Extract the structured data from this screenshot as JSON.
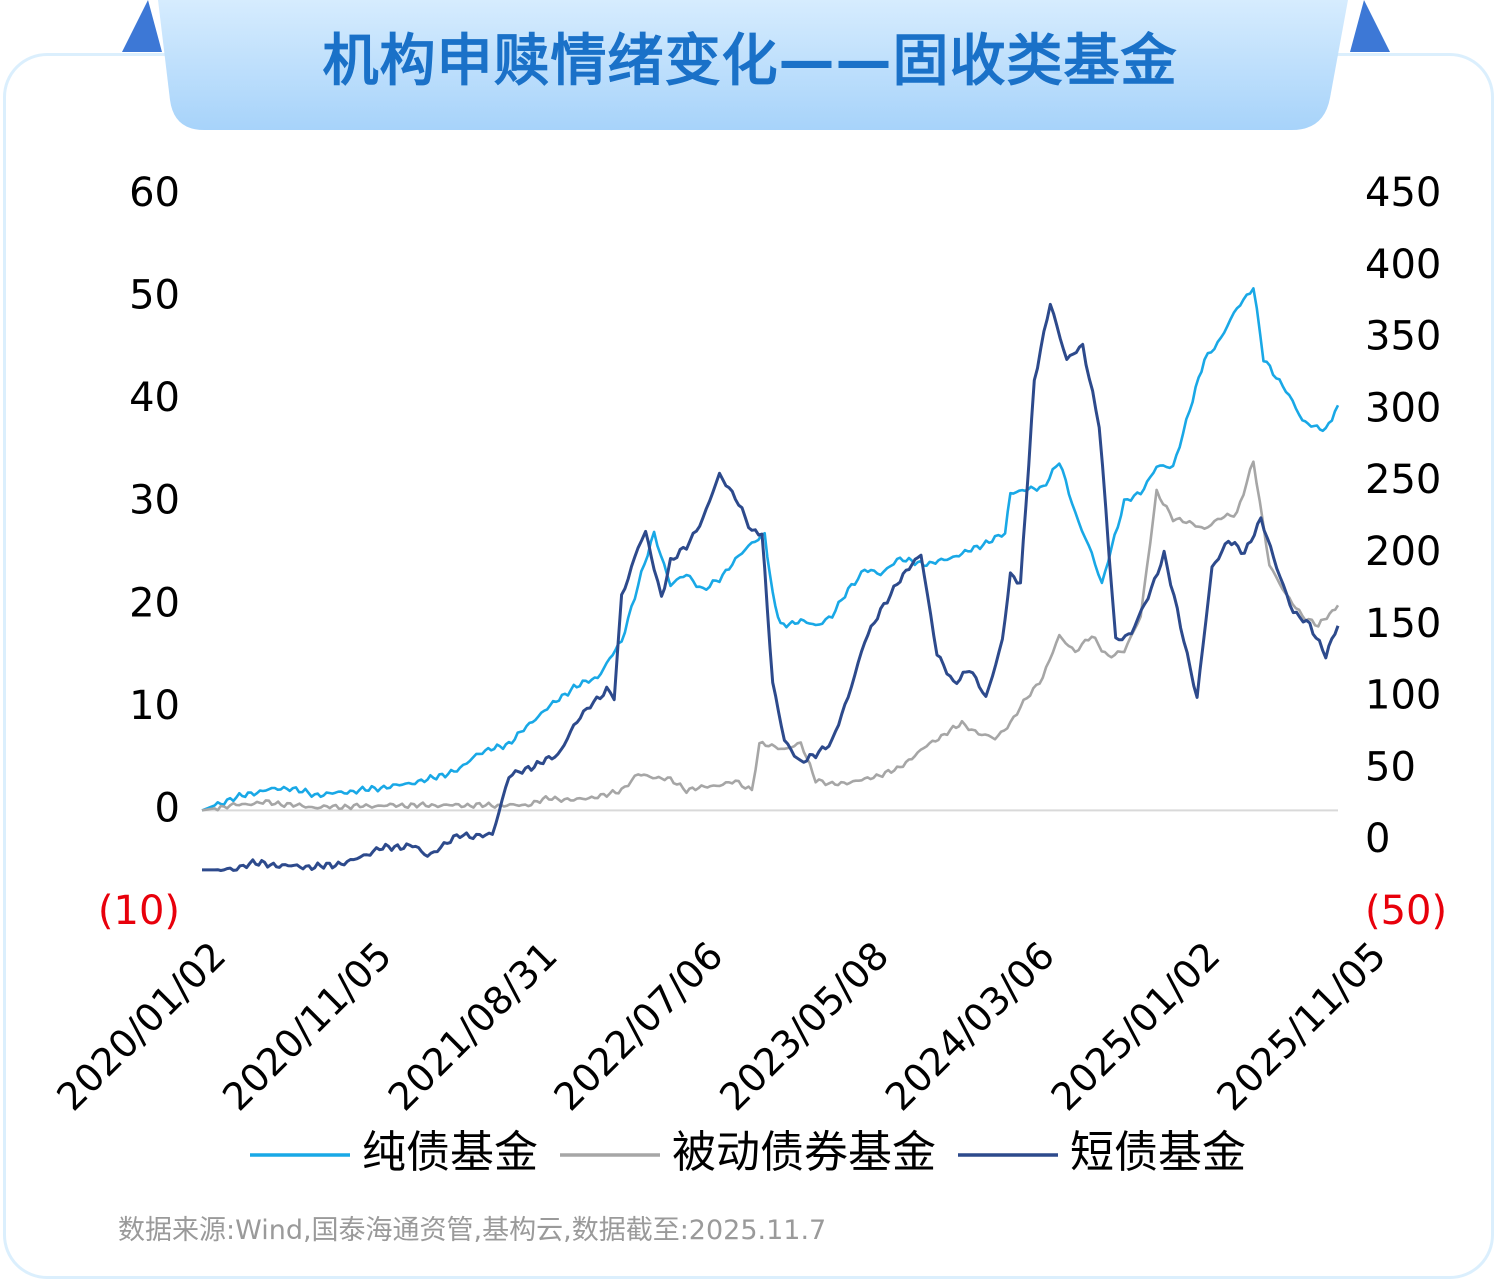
{
  "title": "机构申赎情绪变化——固收类基金",
  "source_note": "数据来源:Wind,国泰海通资管,基构云,数据截至:2025.11.7",
  "colors": {
    "title_text": "#1a71c8",
    "title_bg": "#a9d5fa",
    "pure_bond": "#19a8e6",
    "passive_bond": "#a6a6a6",
    "short_bond": "#2d4a8c",
    "negative_label": "#e8000b"
  },
  "chart_data": {
    "type": "line",
    "title": "机构申赎情绪变化——固收类基金",
    "x_tick_labels": [
      "2020/01/02",
      "2020/11/05",
      "2021/08/31",
      "2022/07/06",
      "2023/05/08",
      "2024/03/06",
      "2025/01/02",
      "2025/11/05"
    ],
    "x_range": [
      "2020/01/02",
      "2025/11/07"
    ],
    "left_axis": {
      "range": [
        -10,
        60
      ],
      "tick_values": [
        0,
        10,
        20,
        30,
        40,
        50,
        60
      ],
      "tick_labels": [
        "0",
        "10",
        "20",
        "30",
        "40",
        "50",
        "60"
      ],
      "min_label": "(10)"
    },
    "right_axis": {
      "range": [
        -50,
        450
      ],
      "tick_values": [
        0,
        50,
        100,
        150,
        200,
        250,
        300,
        350,
        400,
        450
      ],
      "tick_labels": [
        "0",
        "50",
        "100",
        "150",
        "200",
        "250",
        "300",
        "350",
        "400",
        "450"
      ],
      "min_label": "(50)"
    },
    "grid": false,
    "zero_line": true,
    "legend_position": "bottom",
    "series": [
      {
        "name": "纯债基金",
        "axis": "left",
        "color": "#19a8e6",
        "points": [
          [
            "2020/01/02",
            0
          ],
          [
            "2020/03/01",
            1.2
          ],
          [
            "2020/05/01",
            2.0
          ],
          [
            "2020/06/15",
            2.2
          ],
          [
            "2020/08/01",
            1.5
          ],
          [
            "2020/10/01",
            1.8
          ],
          [
            "2021/01/01",
            2.4
          ],
          [
            "2021/03/01",
            3.0
          ],
          [
            "2021/05/01",
            4.0
          ],
          [
            "2021/06/01",
            5.5
          ],
          [
            "2021/08/01",
            6.5
          ],
          [
            "2021/10/01",
            9.5
          ],
          [
            "2021/12/01",
            12.0
          ],
          [
            "2022/01/15",
            13.0
          ],
          [
            "2022/03/01",
            16.5
          ],
          [
            "2022/04/01",
            22.0
          ],
          [
            "2022/05/01",
            27.0
          ],
          [
            "2022/06/01",
            22.0
          ],
          [
            "2022/07/01",
            23.0
          ],
          [
            "2022/08/01",
            21.5
          ],
          [
            "2022/09/01",
            22.5
          ],
          [
            "2022/10/01",
            24.5
          ],
          [
            "2022/11/01",
            26.0
          ],
          [
            "2022/11/25",
            27.0
          ],
          [
            "2022/12/10",
            21.0
          ],
          [
            "2022/12/25",
            18.0
          ],
          [
            "2023/02/01",
            18.5
          ],
          [
            "2023/03/01",
            18.0
          ],
          [
            "2023/04/01",
            19.0
          ],
          [
            "2023/05/01",
            21.5
          ],
          [
            "2023/06/01",
            23.5
          ],
          [
            "2023/07/01",
            23.0
          ],
          [
            "2023/08/01",
            24.5
          ],
          [
            "2023/10/01",
            24.0
          ],
          [
            "2023/12/01",
            25.0
          ],
          [
            "2024/02/01",
            26.5
          ],
          [
            "2024/02/20",
            27.0
          ],
          [
            "2024/03/01",
            31.0
          ],
          [
            "2024/05/01",
            31.5
          ],
          [
            "2024/06/01",
            34.0
          ],
          [
            "2024/07/01",
            29.0
          ],
          [
            "2024/08/01",
            25.0
          ],
          [
            "2024/08/20",
            22.0
          ],
          [
            "2024/09/01",
            24.5
          ],
          [
            "2024/10/01",
            30.0
          ],
          [
            "2024/11/01",
            31.0
          ],
          [
            "2024/12/01",
            33.5
          ],
          [
            "2025/01/01",
            33.5
          ],
          [
            "2025/02/01",
            39.0
          ],
          [
            "2025/03/01",
            44.0
          ],
          [
            "2025/04/01",
            46.0
          ],
          [
            "2025/05/01",
            49.0
          ],
          [
            "2025/06/01",
            51.0
          ],
          [
            "2025/06/20",
            44.0
          ],
          [
            "2025/08/01",
            41.0
          ],
          [
            "2025/09/01",
            38.0
          ],
          [
            "2025/10/15",
            37.0
          ],
          [
            "2025/11/07",
            39.5
          ]
        ]
      },
      {
        "name": "被动债券基金",
        "axis": "left",
        "color": "#a6a6a6",
        "points": [
          [
            "2020/01/02",
            0
          ],
          [
            "2020/03/01",
            0.5
          ],
          [
            "2020/05/01",
            0.8
          ],
          [
            "2020/08/01",
            0.3
          ],
          [
            "2021/01/01",
            0.5
          ],
          [
            "2021/06/01",
            0.5
          ],
          [
            "2021/09/01",
            0.5
          ],
          [
            "2021/10/15",
            1.2
          ],
          [
            "2021/12/01",
            1.0
          ],
          [
            "2022/02/01",
            1.5
          ],
          [
            "2022/03/01",
            2.0
          ],
          [
            "2022/04/01",
            3.5
          ],
          [
            "2022/06/01",
            3.0
          ],
          [
            "2022/07/01",
            2.0
          ],
          [
            "2022/09/01",
            2.5
          ],
          [
            "2022/10/01",
            2.8
          ],
          [
            "2022/11/01",
            2.0
          ],
          [
            "2022/11/15",
            6.5
          ],
          [
            "2023/01/01",
            6.0
          ],
          [
            "2023/02/01",
            6.5
          ],
          [
            "2023/03/01",
            3.0
          ],
          [
            "2023/04/01",
            2.5
          ],
          [
            "2023/06/01",
            3.0
          ],
          [
            "2023/08/01",
            4.0
          ],
          [
            "2023/10/01",
            6.5
          ],
          [
            "2023/12/01",
            8.5
          ],
          [
            "2024/01/01",
            7.5
          ],
          [
            "2024/02/01",
            7.0
          ],
          [
            "2024/03/01",
            8.5
          ],
          [
            "2024/04/01",
            11.0
          ],
          [
            "2024/05/01",
            13.0
          ],
          [
            "2024/06/01",
            17.0
          ],
          [
            "2024/07/01",
            15.5
          ],
          [
            "2024/08/01",
            17.0
          ],
          [
            "2024/09/01",
            15.0
          ],
          [
            "2024/10/01",
            15.5
          ],
          [
            "2024/11/01",
            19.0
          ],
          [
            "2024/12/01",
            31.0
          ],
          [
            "2025/01/01",
            28.5
          ],
          [
            "2025/02/01",
            28.0
          ],
          [
            "2025/03/01",
            27.5
          ],
          [
            "2025/04/01",
            28.5
          ],
          [
            "2025/05/01",
            29.0
          ],
          [
            "2025/06/01",
            34.0
          ],
          [
            "2025/07/01",
            24.0
          ],
          [
            "2025/08/01",
            21.0
          ],
          [
            "2025/09/01",
            19.0
          ],
          [
            "2025/10/01",
            18.0
          ],
          [
            "2025/11/07",
            20.0
          ]
        ]
      },
      {
        "name": "短债基金",
        "axis": "right",
        "color": "#2d4a8c",
        "points": [
          [
            "2020/01/02",
            -20
          ],
          [
            "2020/03/01",
            -20
          ],
          [
            "2020/04/01",
            -15
          ],
          [
            "2020/06/01",
            -17
          ],
          [
            "2020/08/01",
            -18
          ],
          [
            "2020/10/01",
            -15
          ],
          [
            "2020/11/01",
            -10
          ],
          [
            "2020/12/01",
            -5
          ],
          [
            "2021/02/01",
            -3
          ],
          [
            "2021/03/01",
            -10
          ],
          [
            "2021/04/01",
            -3
          ],
          [
            "2021/05/01",
            5
          ],
          [
            "2021/06/01",
            3
          ],
          [
            "2021/07/01",
            5
          ],
          [
            "2021/08/01",
            45
          ],
          [
            "2021/09/01",
            50
          ],
          [
            "2021/11/01",
            60
          ],
          [
            "2021/12/01",
            80
          ],
          [
            "2022/01/01",
            95
          ],
          [
            "2022/02/01",
            105
          ],
          [
            "2022/02/15",
            100
          ],
          [
            "2022/03/01",
            170
          ],
          [
            "2022/04/01",
            205
          ],
          [
            "2022/04/15",
            215
          ],
          [
            "2022/05/01",
            190
          ],
          [
            "2022/05/15",
            170
          ],
          [
            "2022/06/01",
            195
          ],
          [
            "2022/07/01",
            205
          ],
          [
            "2022/08/01",
            225
          ],
          [
            "2022/09/01",
            255
          ],
          [
            "2022/10/01",
            240
          ],
          [
            "2022/11/01",
            215
          ],
          [
            "2022/11/20",
            215
          ],
          [
            "2022/12/10",
            110
          ],
          [
            "2023/01/01",
            70
          ],
          [
            "2023/02/01",
            55
          ],
          [
            "2023/03/01",
            60
          ],
          [
            "2023/04/01",
            70
          ],
          [
            "2023/05/01",
            100
          ],
          [
            "2023/06/01",
            140
          ],
          [
            "2023/07/01",
            160
          ],
          [
            "2023/08/01",
            180
          ],
          [
            "2023/09/15",
            200
          ],
          [
            "2023/10/15",
            130
          ],
          [
            "2023/11/15",
            110
          ],
          [
            "2023/12/15",
            120
          ],
          [
            "2024/01/15",
            100
          ],
          [
            "2024/02/15",
            140
          ],
          [
            "2024/03/01",
            185
          ],
          [
            "2024/03/20",
            180
          ],
          [
            "2024/04/15",
            320
          ],
          [
            "2024/05/15",
            375
          ],
          [
            "2024/06/15",
            335
          ],
          [
            "2024/07/15",
            345
          ],
          [
            "2024/08/15",
            290
          ],
          [
            "2024/09/15",
            140
          ],
          [
            "2024/10/15",
            145
          ],
          [
            "2024/11/15",
            170
          ],
          [
            "2024/12/15",
            200
          ],
          [
            "2025/01/15",
            150
          ],
          [
            "2025/02/15",
            100
          ],
          [
            "2025/03/15",
            190
          ],
          [
            "2025/04/15",
            210
          ],
          [
            "2025/05/15",
            200
          ],
          [
            "2025/06/15",
            225
          ],
          [
            "2025/07/15",
            190
          ],
          [
            "2025/08/15",
            160
          ],
          [
            "2025/09/15",
            150
          ],
          [
            "2025/10/15",
            130
          ],
          [
            "2025/11/07",
            150
          ]
        ]
      }
    ]
  }
}
